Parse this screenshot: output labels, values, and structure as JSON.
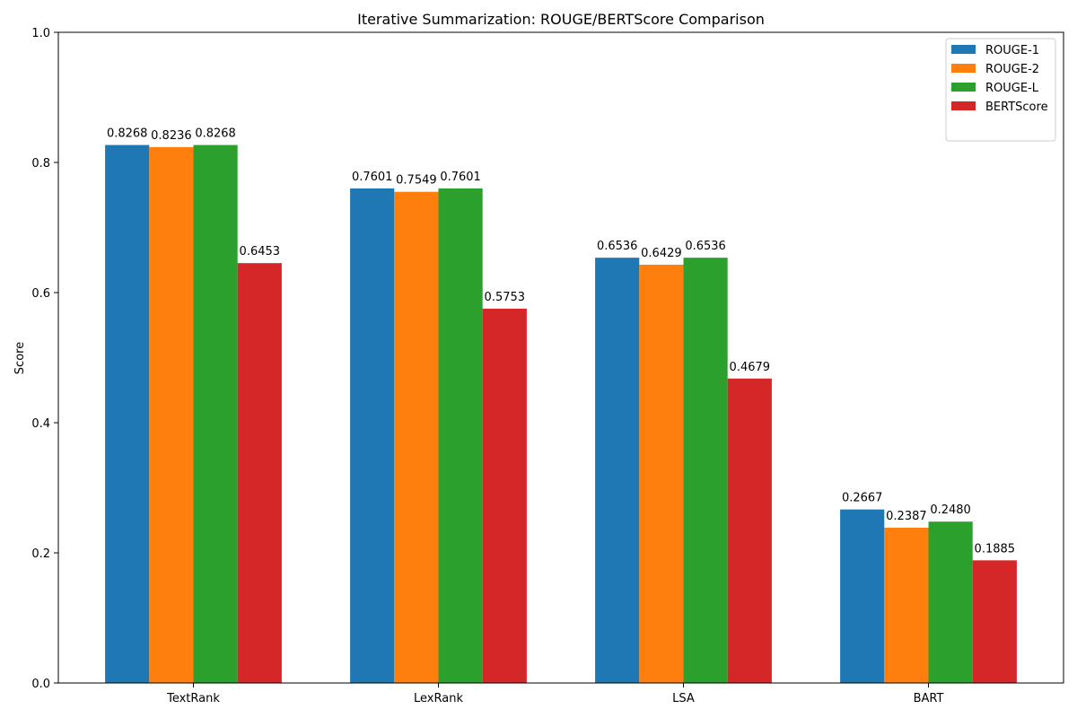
{
  "chart_data": {
    "type": "bar",
    "title": "Iterative Summarization: ROUGE/BERTScore Comparison",
    "xlabel": "",
    "ylabel": "Score",
    "ylim": [
      0,
      1.0
    ],
    "yticks": [
      "0.0",
      "0.2",
      "0.4",
      "0.6",
      "0.8",
      "1.0"
    ],
    "grid": false,
    "legend_position": "top-right",
    "categories": [
      "TextRank",
      "LexRank",
      "LSA",
      "BART"
    ],
    "series": [
      {
        "name": "ROUGE-1",
        "color": "#1f77b4",
        "values": [
          0.8268,
          0.7601,
          0.6536,
          0.2667
        ],
        "labels": [
          "0.8268",
          "0.7601",
          "0.6536",
          "0.2667"
        ]
      },
      {
        "name": "ROUGE-2",
        "color": "#ff7f0e",
        "values": [
          0.8236,
          0.7549,
          0.6429,
          0.2387
        ],
        "labels": [
          "0.8236",
          "0.7549",
          "0.6429",
          "0.2387"
        ]
      },
      {
        "name": "ROUGE-L",
        "color": "#2ca02c",
        "values": [
          0.8268,
          0.7601,
          0.6536,
          0.248
        ],
        "labels": [
          "0.8268",
          "0.7601",
          "0.6536",
          "0.2480"
        ]
      },
      {
        "name": "BERTScore",
        "color": "#d62728",
        "values": [
          0.6453,
          0.5753,
          0.4679,
          0.1885
        ],
        "labels": [
          "0.6453",
          "0.5753",
          "0.4679",
          "0.1885"
        ]
      }
    ]
  }
}
